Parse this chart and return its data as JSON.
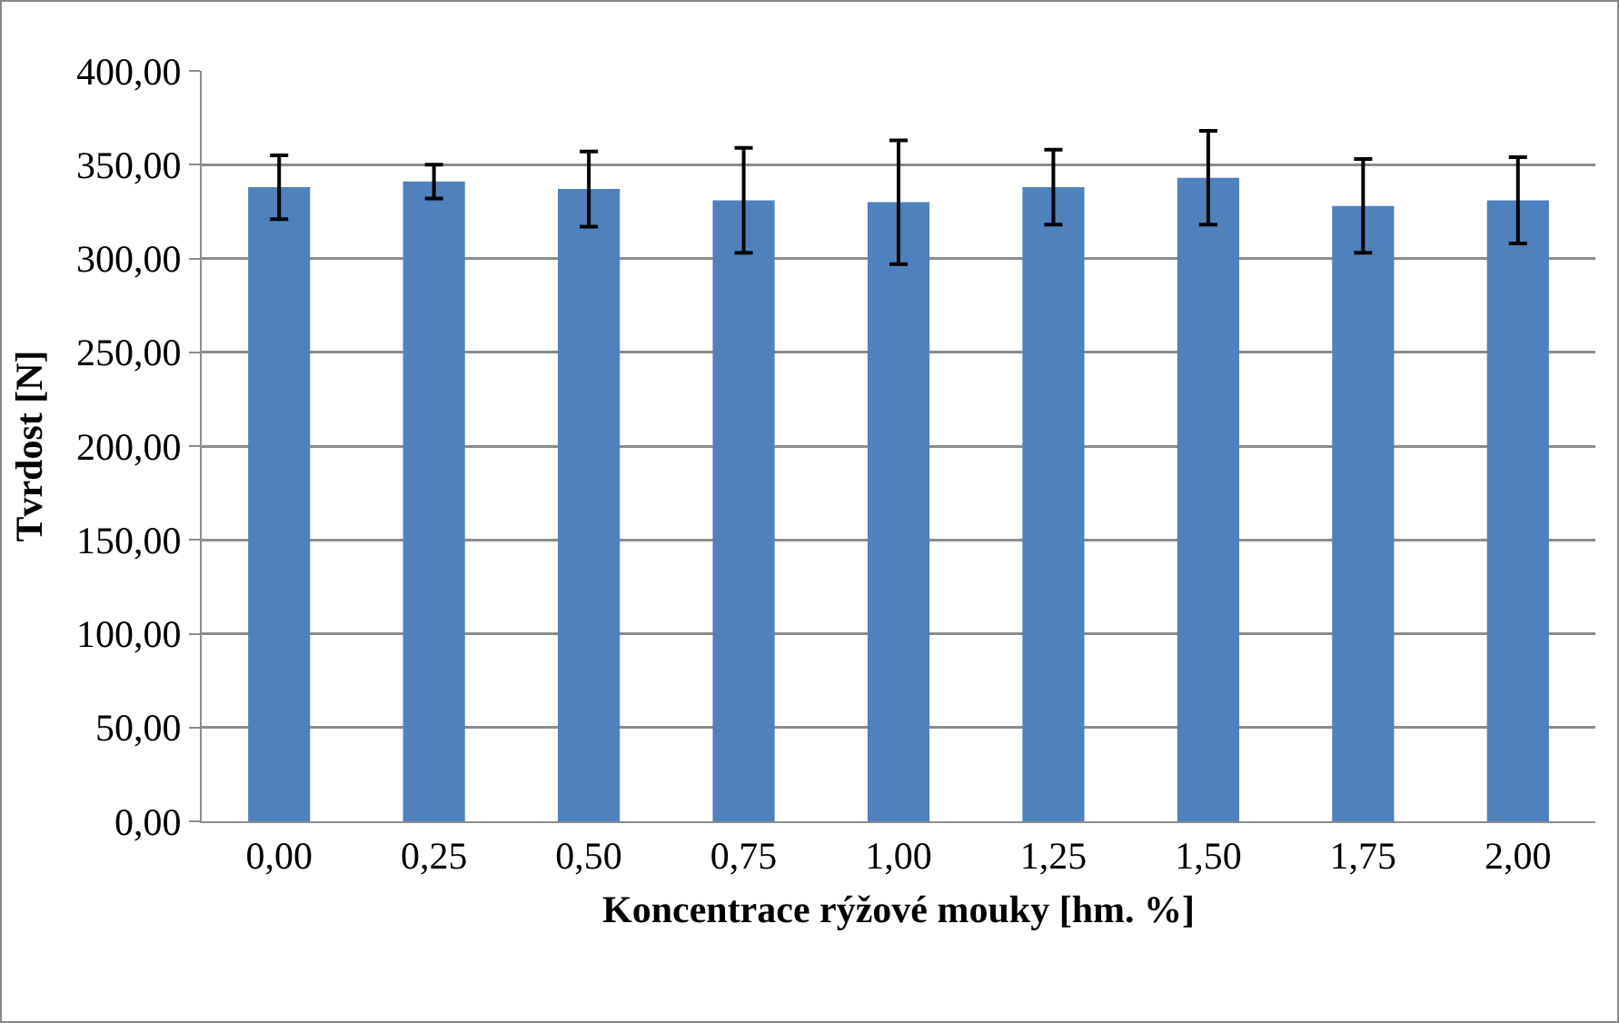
{
  "chart_data": {
    "type": "bar",
    "xlabel": "Koncentrace rýžové mouky [hm. %]",
    "ylabel": "Tvrdost [N]",
    "categories": [
      "0,00",
      "0,25",
      "0,50",
      "0,75",
      "1,00",
      "1,25",
      "1,50",
      "1,75",
      "2,00"
    ],
    "values": [
      338,
      341,
      337,
      331,
      330,
      338,
      343,
      328,
      331
    ],
    "errors": [
      17,
      9,
      20,
      28,
      33,
      20,
      25,
      25,
      23
    ],
    "color": "#4f81bd",
    "ylim": [
      0,
      400
    ],
    "yticks": [
      {
        "value": 0,
        "label": "0,00"
      },
      {
        "value": 50,
        "label": "50,00"
      },
      {
        "value": 100,
        "label": "100,00"
      },
      {
        "value": 150,
        "label": "150,00"
      },
      {
        "value": 200,
        "label": "200,00"
      },
      {
        "value": 250,
        "label": "250,00"
      },
      {
        "value": 300,
        "label": "300,00"
      },
      {
        "value": 350,
        "label": "350,00"
      },
      {
        "value": 400,
        "label": "400,00"
      }
    ],
    "grid": "y"
  }
}
